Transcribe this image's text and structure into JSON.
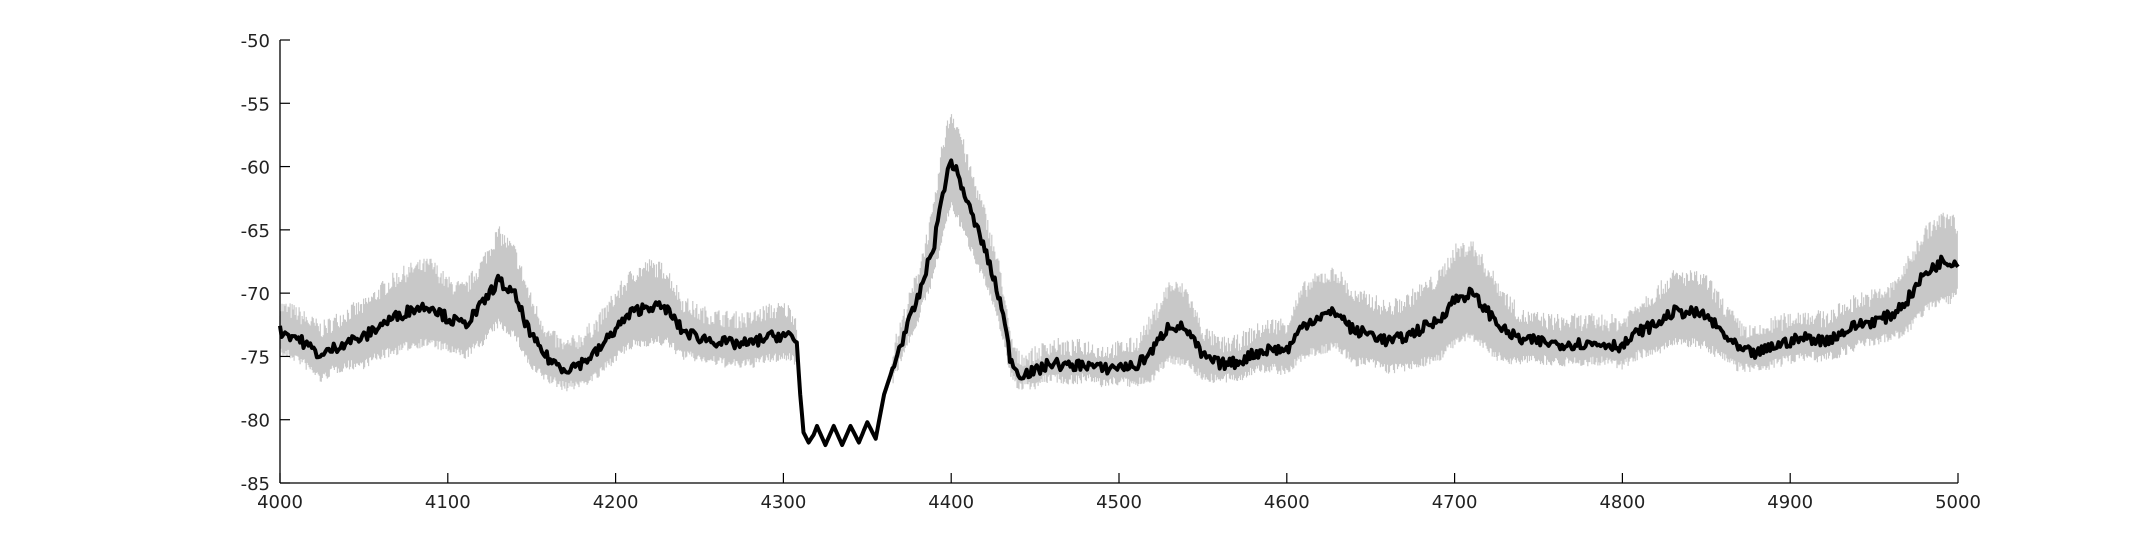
{
  "chart_data": {
    "type": "line",
    "title": "",
    "xlabel": "",
    "ylabel": "",
    "xlim": [
      4000,
      5000
    ],
    "ylim": [
      -85,
      -50
    ],
    "xticks": [
      "4000",
      "4100",
      "4200",
      "4300",
      "4400",
      "4500",
      "4600",
      "4700",
      "4800",
      "4900",
      "5000"
    ],
    "yticks": [
      "-50",
      "-55",
      "-60",
      "-65",
      "-70",
      "-75",
      "-80",
      "-85"
    ],
    "grid": false,
    "legend": "none",
    "colors": {
      "mean_line": "#000000",
      "band": "#c8c8c8",
      "axis": "#000000"
    },
    "series": [
      {
        "style": "thick black line",
        "x": [
          4000,
          4010,
          4020,
          4025,
          4030,
          4040,
          4050,
          4060,
          4070,
          4080,
          4090,
          4100,
          4110,
          4120,
          4130,
          4140,
          4150,
          4160,
          4170,
          4180,
          4190,
          4200,
          4210,
          4220,
          4230,
          4240,
          4250,
          4260,
          4270,
          4280,
          4290,
          4300,
          4305,
          4308,
          4310,
          4312,
          4315,
          4318,
          4320,
          4325,
          4330,
          4335,
          4340,
          4345,
          4350,
          4355,
          4360,
          4365,
          4370,
          4380,
          4390,
          4395,
          4400,
          4405,
          4410,
          4420,
          4430,
          4435,
          4440,
          4450,
          4460,
          4470,
          4480,
          4490,
          4500,
          4510,
          4520,
          4530,
          4540,
          4550,
          4560,
          4570,
          4580,
          4590,
          4600,
          4610,
          4620,
          4630,
          4640,
          4650,
          4660,
          4670,
          4680,
          4690,
          4700,
          4710,
          4720,
          4730,
          4740,
          4750,
          4760,
          4770,
          4780,
          4790,
          4800,
          4810,
          4820,
          4830,
          4840,
          4850,
          4860,
          4870,
          4880,
          4890,
          4900,
          4910,
          4920,
          4930,
          4940,
          4950,
          4960,
          4970,
          4980,
          4990,
          4995,
          5000
        ],
        "y": [
          -73,
          -73.5,
          -74.5,
          -75,
          -74.5,
          -73.8,
          -73.5,
          -72.5,
          -71.8,
          -71.2,
          -71,
          -72,
          -72.5,
          -71,
          -69,
          -70.2,
          -73.5,
          -75.2,
          -76,
          -75.5,
          -74.5,
          -72.8,
          -71.5,
          -71,
          -71.2,
          -73,
          -73.5,
          -73.8,
          -74,
          -74,
          -73.5,
          -73.3,
          -73.5,
          -74,
          -78,
          -81,
          -81.8,
          -81.2,
          -80.5,
          -82,
          -80.5,
          -82,
          -80.5,
          -81.8,
          -80.2,
          -81.5,
          -78,
          -76,
          -74,
          -70.5,
          -66,
          -62,
          -59.5,
          -61,
          -63,
          -66.5,
          -71,
          -75,
          -76.4,
          -76.2,
          -75.5,
          -75.8,
          -75.6,
          -76,
          -75.8,
          -75.8,
          -74.5,
          -72.5,
          -72.8,
          -75,
          -75.6,
          -75.5,
          -74.8,
          -74.4,
          -74.5,
          -72.5,
          -71.8,
          -71.5,
          -73,
          -73.2,
          -73.8,
          -73.5,
          -72.8,
          -72.2,
          -70.5,
          -70,
          -71.5,
          -73,
          -73.7,
          -73.8,
          -74,
          -74,
          -74,
          -74,
          -74.2,
          -73,
          -72.5,
          -71.5,
          -71.5,
          -71.8,
          -73.2,
          -74.5,
          -74.8,
          -74.2,
          -73.8,
          -73.5,
          -73.8,
          -73.2,
          -72.5,
          -72.2,
          -71.8,
          -70.5,
          -68.5,
          -67.5,
          -67.5,
          -67.5
        ]
      },
      {
        "style": "grey band",
        "x": [
          4000,
          4010,
          4020,
          4025,
          4030,
          4040,
          4050,
          4060,
          4070,
          4080,
          4090,
          4100,
          4110,
          4120,
          4130,
          4140,
          4150,
          4160,
          4170,
          4180,
          4190,
          4200,
          4210,
          4220,
          4230,
          4240,
          4250,
          4260,
          4270,
          4280,
          4290,
          4300,
          4305,
          4308,
          4310,
          4312,
          4315,
          4318,
          4320,
          4325,
          4330,
          4335,
          4340,
          4345,
          4350,
          4355,
          4360,
          4365,
          4370,
          4380,
          4390,
          4395,
          4400,
          4405,
          4410,
          4420,
          4430,
          4435,
          4440,
          4450,
          4460,
          4470,
          4480,
          4490,
          4500,
          4510,
          4520,
          4530,
          4540,
          4550,
          4560,
          4570,
          4580,
          4590,
          4600,
          4610,
          4620,
          4630,
          4640,
          4650,
          4660,
          4670,
          4680,
          4690,
          4700,
          4710,
          4720,
          4730,
          4740,
          4750,
          4760,
          4770,
          4780,
          4790,
          4800,
          4810,
          4820,
          4830,
          4840,
          4850,
          4860,
          4870,
          4880,
          4890,
          4900,
          4910,
          4920,
          4930,
          4940,
          4950,
          4960,
          4970,
          4980,
          4990,
          4995,
          5000
        ],
        "upper": [
          -71.8,
          -72.3,
          -73.2,
          -73.6,
          -73.2,
          -72.3,
          -71.8,
          -70.5,
          -69.5,
          -68.8,
          -68.5,
          -70,
          -70.5,
          -68.5,
          -66,
          -67.5,
          -71.5,
          -74,
          -75,
          -74.3,
          -73,
          -71,
          -69.3,
          -68.6,
          -69,
          -71.5,
          -72.3,
          -72.6,
          -72.8,
          -72.8,
          -72.2,
          -72,
          -72.3,
          -73,
          -77.5,
          -80.8,
          -81.6,
          -81,
          -80.3,
          -81.8,
          -80.3,
          -81.8,
          -80.3,
          -81.6,
          -80,
          -81.2,
          -77.6,
          -75.5,
          -73.3,
          -69.3,
          -64,
          -59,
          -56.5,
          -58,
          -60.5,
          -64.5,
          -69.5,
          -74.2,
          -75.9,
          -75.6,
          -74.8,
          -75.1,
          -74.9,
          -75.3,
          -75.1,
          -74.8,
          -72.8,
          -70.2,
          -70.6,
          -73.8,
          -74.8,
          -74.7,
          -73.9,
          -73.3,
          -73.2,
          -70.5,
          -69.5,
          -69.2,
          -71,
          -71.3,
          -72,
          -71.5,
          -70.5,
          -69.7,
          -67.5,
          -67,
          -69,
          -71,
          -72.6,
          -72.8,
          -73,
          -73,
          -73,
          -73,
          -73.1,
          -71.6,
          -70.8,
          -69.5,
          -69.5,
          -69.8,
          -71.7,
          -73.5,
          -74,
          -73.2,
          -72.8,
          -72.5,
          -72.8,
          -72.1,
          -71.3,
          -71,
          -70.5,
          -68.5,
          -66,
          -65,
          -64.8,
          -65.5
        ],
        "lower": [
          -74.2,
          -74.7,
          -75.8,
          -76.4,
          -75.8,
          -75.3,
          -75.2,
          -74.5,
          -74.1,
          -73.6,
          -73.5,
          -74,
          -74.5,
          -73.5,
          -72,
          -72.9,
          -75.5,
          -76.4,
          -77,
          -76.7,
          -76,
          -74.6,
          -73.7,
          -73.4,
          -73.4,
          -74.5,
          -74.7,
          -75,
          -75.2,
          -75.2,
          -74.8,
          -74.6,
          -74.7,
          -75,
          -78.5,
          -81.2,
          -82,
          -81.4,
          -80.7,
          -82.2,
          -80.7,
          -82.2,
          -80.7,
          -82,
          -80.4,
          -81.8,
          -78.4,
          -76.5,
          -74.7,
          -71.7,
          -68,
          -65,
          -62.5,
          -64,
          -65.5,
          -68.5,
          -72.5,
          -75.8,
          -76.9,
          -76.8,
          -76.2,
          -76.5,
          -76.3,
          -76.7,
          -76.5,
          -76.8,
          -76.2,
          -74.8,
          -75,
          -76.2,
          -76.4,
          -76.3,
          -75.7,
          -75.5,
          -75.8,
          -74.5,
          -74.1,
          -73.8,
          -75,
          -75.1,
          -75.6,
          -75.5,
          -75.1,
          -74.7,
          -73.5,
          -73,
          -74,
          -75,
          -74.8,
          -74.8,
          -75,
          -75,
          -75,
          -75,
          -75.3,
          -74.4,
          -74.2,
          -73.5,
          -73.5,
          -73.8,
          -74.7,
          -75.5,
          -75.6,
          -75.2,
          -74.8,
          -74.5,
          -74.8,
          -74.3,
          -73.7,
          -73.4,
          -73.1,
          -72.5,
          -71,
          -70,
          -70.2,
          -69.5
        ]
      }
    ]
  }
}
